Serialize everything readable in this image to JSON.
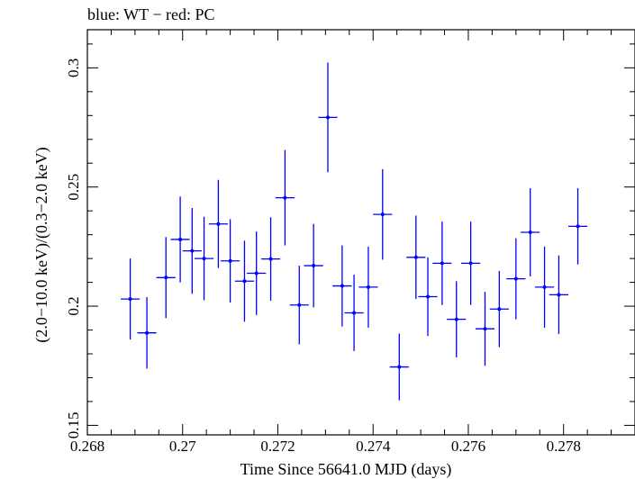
{
  "chart_data": {
    "type": "scatter",
    "title": "blue: WT − red: PC",
    "xlabel": "Time Since 56641.0 MJD (days)",
    "ylabel": "(2.0−10.0 keV)/(0.3−2.0 keV)",
    "xlim": [
      0.268,
      0.2795
    ],
    "ylim": [
      0.146,
      0.316
    ],
    "x_ticks": [
      0.268,
      0.27,
      0.272,
      0.274,
      0.276,
      0.278
    ],
    "x_tick_labels": [
      "0.268",
      "0.27",
      "0.272",
      "0.274",
      "0.276",
      "0.278"
    ],
    "y_ticks": [
      0.15,
      0.2,
      0.25,
      0.3
    ],
    "y_tick_labels": [
      "0.15",
      "0.2",
      "0.25",
      "0.3"
    ],
    "grid": false,
    "series": [
      {
        "color": "#0000ff",
        "points": [
          {
            "x": 0.2689,
            "y": 0.203,
            "xerr": 0.0002,
            "yerr": 0.017
          },
          {
            "x": 0.26925,
            "y": 0.1888,
            "xerr": 0.0002,
            "yerr": 0.015
          },
          {
            "x": 0.26965,
            "y": 0.212,
            "xerr": 0.0002,
            "yerr": 0.017
          },
          {
            "x": 0.26995,
            "y": 0.228,
            "xerr": 0.0002,
            "yerr": 0.018
          },
          {
            "x": 0.2702,
            "y": 0.2232,
            "xerr": 0.0002,
            "yerr": 0.018
          },
          {
            "x": 0.27045,
            "y": 0.22,
            "xerr": 0.0002,
            "yerr": 0.0175
          },
          {
            "x": 0.27075,
            "y": 0.2345,
            "xerr": 0.0002,
            "yerr": 0.0185
          },
          {
            "x": 0.271,
            "y": 0.219,
            "xerr": 0.0002,
            "yerr": 0.0175
          },
          {
            "x": 0.2713,
            "y": 0.2105,
            "xerr": 0.0002,
            "yerr": 0.017
          },
          {
            "x": 0.27155,
            "y": 0.2138,
            "xerr": 0.0002,
            "yerr": 0.0175
          },
          {
            "x": 0.27185,
            "y": 0.2198,
            "xerr": 0.0002,
            "yerr": 0.0175
          },
          {
            "x": 0.27215,
            "y": 0.2455,
            "xerr": 0.0002,
            "yerr": 0.02
          },
          {
            "x": 0.27245,
            "y": 0.2005,
            "xerr": 0.0002,
            "yerr": 0.0165
          },
          {
            "x": 0.27275,
            "y": 0.217,
            "xerr": 0.0002,
            "yerr": 0.0175
          },
          {
            "x": 0.27305,
            "y": 0.2792,
            "xerr": 0.0002,
            "yerr": 0.023
          },
          {
            "x": 0.27335,
            "y": 0.2085,
            "xerr": 0.0002,
            "yerr": 0.017
          },
          {
            "x": 0.2736,
            "y": 0.1972,
            "xerr": 0.0002,
            "yerr": 0.016
          },
          {
            "x": 0.2739,
            "y": 0.208,
            "xerr": 0.0002,
            "yerr": 0.017
          },
          {
            "x": 0.2742,
            "y": 0.2385,
            "xerr": 0.0002,
            "yerr": 0.019
          },
          {
            "x": 0.27455,
            "y": 0.1745,
            "xerr": 0.0002,
            "yerr": 0.014
          },
          {
            "x": 0.2749,
            "y": 0.2205,
            "xerr": 0.0002,
            "yerr": 0.0175
          },
          {
            "x": 0.27515,
            "y": 0.204,
            "xerr": 0.0002,
            "yerr": 0.0165
          },
          {
            "x": 0.27545,
            "y": 0.218,
            "xerr": 0.0002,
            "yerr": 0.0175
          },
          {
            "x": 0.27575,
            "y": 0.1945,
            "xerr": 0.0002,
            "yerr": 0.016
          },
          {
            "x": 0.27605,
            "y": 0.218,
            "xerr": 0.0002,
            "yerr": 0.0175
          },
          {
            "x": 0.27635,
            "y": 0.1905,
            "xerr": 0.0002,
            "yerr": 0.0155
          },
          {
            "x": 0.27665,
            "y": 0.1988,
            "xerr": 0.0002,
            "yerr": 0.016
          },
          {
            "x": 0.277,
            "y": 0.2115,
            "xerr": 0.0002,
            "yerr": 0.017
          },
          {
            "x": 0.2773,
            "y": 0.231,
            "xerr": 0.0002,
            "yerr": 0.0185
          },
          {
            "x": 0.2776,
            "y": 0.208,
            "xerr": 0.0002,
            "yerr": 0.017
          },
          {
            "x": 0.2779,
            "y": 0.2048,
            "xerr": 0.0002,
            "yerr": 0.0165
          },
          {
            "x": 0.2783,
            "y": 0.2335,
            "xerr": 0.0002,
            "yerr": 0.016
          }
        ]
      }
    ]
  }
}
